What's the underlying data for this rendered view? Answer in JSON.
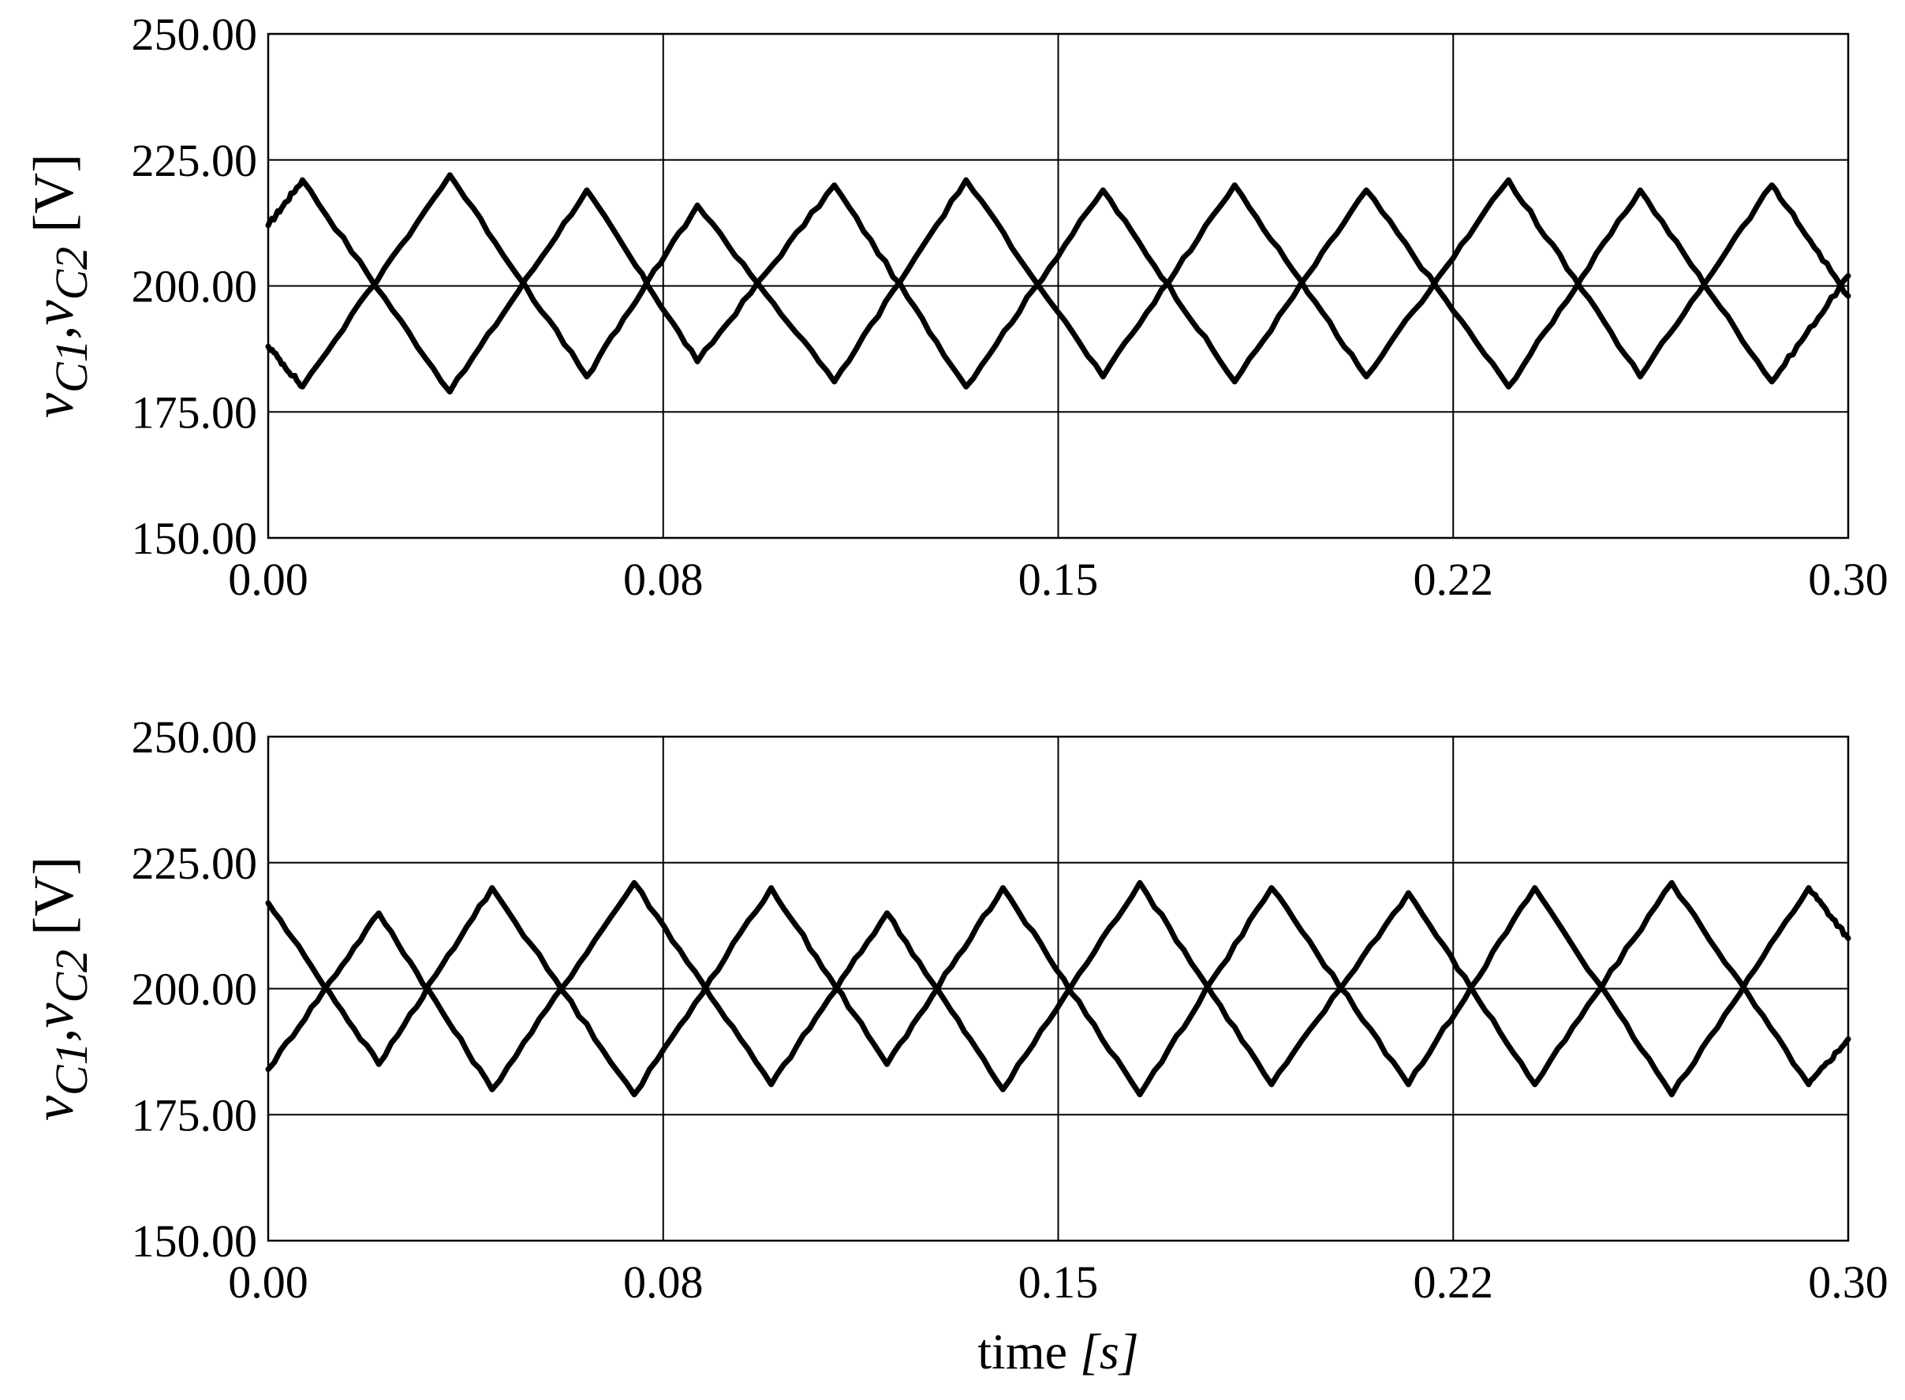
{
  "chart_data": [
    {
      "type": "line",
      "ylabel": {
        "base": "v",
        "sub1": "C1",
        "sep": ",",
        "base2": "v",
        "sub2": "C2",
        "unit": " [V]"
      },
      "xlabel": "",
      "xlim": [
        0,
        0.3
      ],
      "ylim": [
        150,
        250
      ],
      "x_ticks": [
        "0.00",
        "0.08",
        "0.15",
        "0.22",
        "0.30"
      ],
      "y_ticks": [
        "250.00",
        "225.00",
        "200.00",
        "175.00",
        "150.00"
      ],
      "grid": true,
      "series": [
        {
          "x": [
            0,
            0.0065,
            0.0345,
            0.0605,
            0.0815,
            0.1075,
            0.1325,
            0.1585,
            0.1835,
            0.2085,
            0.2355,
            0.2605,
            0.2855,
            0.3
          ],
          "y": [
            212,
            221,
            179,
            219,
            185,
            220,
            180,
            219,
            181,
            219,
            180,
            219,
            181,
            202
          ]
        },
        {
          "x": [
            0,
            0.0065,
            0.0345,
            0.0605,
            0.0815,
            0.1075,
            0.1325,
            0.1585,
            0.1835,
            0.2085,
            0.2355,
            0.2605,
            0.2855,
            0.3
          ],
          "y": [
            188,
            180,
            222,
            182,
            216,
            181,
            221,
            182,
            220,
            182,
            221,
            182,
            220,
            198
          ]
        }
      ]
    },
    {
      "type": "line",
      "ylabel": {
        "base": "v",
        "sub1": "C1",
        "sep": ",",
        "base2": "v",
        "sub2": "C2",
        "unit": " [V]"
      },
      "xlabel": {
        "text": "time ",
        "unit": "[s]"
      },
      "xlim": [
        0,
        0.3
      ],
      "ylim": [
        150,
        250
      ],
      "x_ticks": [
        "0.00",
        "0.08",
        "0.15",
        "0.22",
        "0.30"
      ],
      "y_ticks": [
        "250.00",
        "225.00",
        "200.00",
        "175.00",
        "150.00"
      ],
      "grid": true,
      "series": [
        {
          "x": [
            0,
            0.021,
            0.0425,
            0.0695,
            0.0955,
            0.1175,
            0.1395,
            0.1655,
            0.1905,
            0.2165,
            0.2405,
            0.2665,
            0.2925,
            0.3
          ],
          "y": [
            184,
            215,
            180,
            221,
            181,
            215,
            180,
            221,
            181,
            219,
            181,
            221,
            181,
            190
          ]
        },
        {
          "x": [
            0,
            0.021,
            0.0425,
            0.0695,
            0.0955,
            0.1175,
            0.1395,
            0.1655,
            0.1905,
            0.2165,
            0.2405,
            0.2665,
            0.2925,
            0.3
          ],
          "y": [
            217,
            185,
            220,
            179,
            220,
            185,
            220,
            179,
            220,
            181,
            220,
            179,
            220,
            210
          ]
        }
      ]
    }
  ]
}
